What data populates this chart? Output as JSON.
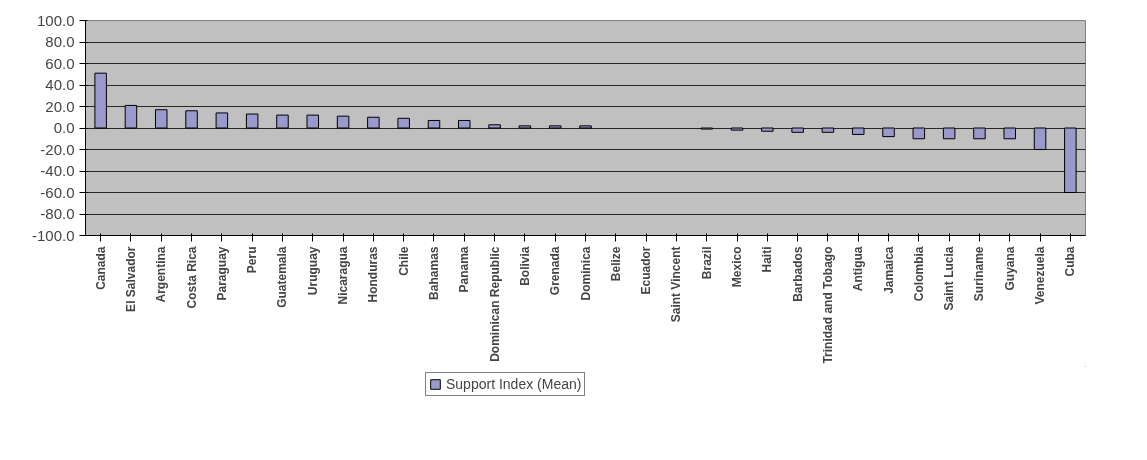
{
  "chart_data": {
    "type": "bar",
    "categories": [
      "Canada",
      "El Salvador",
      "Argentina",
      "Costa Rica",
      "Paraguay",
      "Peru",
      "Guatemala",
      "Uruguay",
      "Nicaragua",
      "Honduras",
      "Chile",
      "Bahamas",
      "Panama",
      "Dominican Republic",
      "Bolivia",
      "Grenada",
      "Dominica",
      "Belize",
      "Ecuador",
      "Saint Vincent",
      "Brazil",
      "Mexico",
      "Haiti",
      "Barbados",
      "Trinidad and Tobago",
      "Antigua",
      "Jamaica",
      "Colombia",
      "Saint Lucia",
      "Suriname",
      "Guyana",
      "Venezuela",
      "Cuba"
    ],
    "series": [
      {
        "name": "Support Index (Mean)",
        "color": "#9999cc",
        "values": [
          51,
          21,
          17,
          16,
          14,
          13,
          12,
          12,
          11,
          10,
          9,
          7,
          7,
          3,
          2,
          2,
          2,
          0,
          0,
          0,
          -1,
          -2,
          -3,
          -4,
          -4,
          -6,
          -8,
          -10,
          -10,
          -10,
          -10,
          -20,
          -60
        ]
      }
    ],
    "ylim": [
      -100,
      100
    ],
    "yticks": [
      {
        "value": -100,
        "label": "-100.0"
      },
      {
        "value": -80,
        "label": "-80.0"
      },
      {
        "value": -60,
        "label": "-60.0"
      },
      {
        "value": -40,
        "label": "-40.0"
      },
      {
        "value": -20,
        "label": "-20.0"
      },
      {
        "value": 0,
        "label": "0.0"
      },
      {
        "value": 20,
        "label": "20.0"
      },
      {
        "value": 40,
        "label": "40.0"
      },
      {
        "value": 60,
        "label": "60.0"
      },
      {
        "value": 80,
        "label": "80.0"
      },
      {
        "value": 100,
        "label": "100.0"
      }
    ],
    "grid": "y",
    "legend": "bottom"
  }
}
